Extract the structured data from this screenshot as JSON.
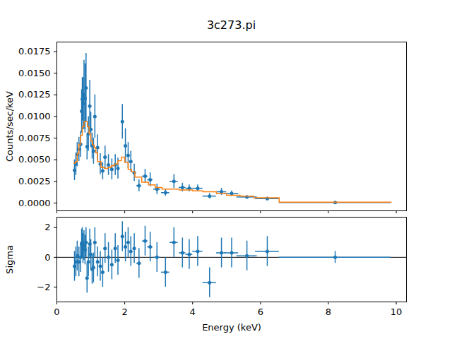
{
  "chart_data": [
    {
      "type": "scatter",
      "title": "3c273.pi",
      "y_label": "Counts/sec/keV",
      "xlim": [
        0,
        10.3
      ],
      "xticks": [
        0,
        2,
        4,
        6,
        8,
        10
      ],
      "tick_labels": "y",
      "ylim": [
        -0.0009,
        0.0186
      ],
      "yticks": [
        {
          "value": 0,
          "label": "0.0000"
        },
        {
          "value": 0.0025,
          "label": "0.0025"
        },
        {
          "value": 0.005,
          "label": "0.0050"
        },
        {
          "value": 0.0075,
          "label": "0.0075"
        },
        {
          "value": 0.01,
          "label": "0.0100"
        },
        {
          "value": 0.0125,
          "label": "0.0125"
        },
        {
          "value": 0.015,
          "label": "0.0150"
        },
        {
          "value": 0.0175,
          "label": "0.0175"
        }
      ],
      "series": [
        {
          "type": "scatter",
          "color": "#1f77b4",
          "marker": "circle",
          "x": [
            0.52,
            0.56,
            0.6,
            0.65,
            0.7,
            0.73,
            0.75,
            0.77,
            0.8,
            0.83,
            0.86,
            0.89,
            0.93,
            0.97,
            1.0,
            1.04,
            1.08,
            1.12,
            1.2,
            1.28,
            1.35,
            1.42,
            1.52,
            1.62,
            1.72,
            1.8,
            1.93,
            2.02,
            2.1,
            2.18,
            2.28,
            2.42,
            2.6,
            2.75,
            2.95,
            3.2,
            3.45,
            3.7,
            3.9,
            4.15,
            4.5,
            4.85,
            5.15,
            5.6,
            6.2,
            8.2
          ],
          "xerr": [
            0.02,
            0.02,
            0.02,
            0.02,
            0.02,
            0.02,
            0.02,
            0.02,
            0.02,
            0.02,
            0.02,
            0.02,
            0.02,
            0.02,
            0.02,
            0.02,
            0.02,
            0.02,
            0.02,
            0.02,
            0.02,
            0.04,
            0.04,
            0.04,
            0.04,
            0.04,
            0.04,
            0.04,
            0.04,
            0.04,
            0.04,
            0.07,
            0.08,
            0.08,
            0.1,
            0.12,
            0.12,
            0.1,
            0.1,
            0.15,
            0.2,
            0.15,
            0.2,
            0.3,
            0.35,
            1.65
          ],
          "values": [
            0.0038,
            0.0045,
            0.0056,
            0.0062,
            0.0068,
            0.0106,
            0.012,
            0.0115,
            0.0125,
            0.0121,
            0.0133,
            0.0065,
            0.008,
            0.0112,
            0.0085,
            0.0066,
            0.006,
            0.01,
            0.0064,
            0.0045,
            0.0037,
            0.0053,
            0.0044,
            0.0039,
            0.0044,
            0.004,
            0.0094,
            0.0066,
            0.0055,
            0.0048,
            0.0035,
            0.002,
            0.0031,
            0.0027,
            0.0016,
            0.0012,
            0.0025,
            0.0018,
            0.0017,
            0.0017,
            0.0008,
            0.0013,
            0.0011,
            0.0007,
            0.0005,
            5e-05
          ],
          "yerr": [
            0.0012,
            0.0013,
            0.0014,
            0.0014,
            0.0015,
            0.0025,
            0.0025,
            0.003,
            0.004,
            0.004,
            0.004,
            0.0015,
            0.002,
            0.003,
            0.002,
            0.0015,
            0.0015,
            0.0025,
            0.0015,
            0.0012,
            0.001,
            0.0013,
            0.0012,
            0.0012,
            0.0012,
            0.0012,
            0.002,
            0.002,
            0.0015,
            0.0012,
            0.001,
            0.0007,
            0.0008,
            0.0008,
            0.0006,
            0.0004,
            0.0008,
            0.0005,
            0.0004,
            0.0004,
            0.0003,
            0.0004,
            0.0003,
            0.0002,
            0.0002,
            0.0001
          ]
        },
        {
          "type": "step",
          "color": "#ff7f0e",
          "line_style": "solid",
          "bins": [
            0.5,
            0.55,
            0.6,
            0.65,
            0.7,
            0.75,
            0.8,
            0.85,
            0.9,
            0.95,
            1.0,
            1.05,
            1.1,
            1.15,
            1.2,
            1.3,
            1.4,
            1.5,
            1.6,
            1.7,
            1.8,
            1.9,
            2.0,
            2.1,
            2.2,
            2.3,
            2.5,
            2.7,
            2.9,
            3.1,
            3.4,
            3.6,
            3.8,
            4.0,
            4.3,
            4.7,
            5.0,
            5.4,
            5.8,
            6.55,
            9.85
          ],
          "values": [
            0.0046,
            0.0048,
            0.0057,
            0.0068,
            0.0078,
            0.0088,
            0.0094,
            0.0094,
            0.0088,
            0.008,
            0.0072,
            0.0067,
            0.0064,
            0.0058,
            0.0048,
            0.0041,
            0.004,
            0.0041,
            0.0043,
            0.0045,
            0.0049,
            0.0053,
            0.0047,
            0.0039,
            0.0036,
            0.003,
            0.0024,
            0.0021,
            0.0018,
            0.0016,
            0.0016,
            0.0015,
            0.0015,
            0.0014,
            0.0013,
            0.0011,
            0.0009,
            0.0008,
            0.0006,
            0.0001
          ]
        }
      ]
    },
    {
      "type": "scatter",
      "x_label": "Energy (keV)",
      "y_label": "Sigma",
      "xlim": [
        0,
        10.3
      ],
      "xticks": [
        0,
        2,
        4,
        6,
        8,
        10
      ],
      "ylim": [
        -3,
        2.7
      ],
      "yticks": [
        {
          "value": -2,
          "label": "−2"
        },
        0,
        2
      ],
      "hline": 0,
      "series": [
        {
          "type": "scatter",
          "color": "#1f77b4",
          "marker": "circle",
          "x": [
            0.52,
            0.56,
            0.6,
            0.65,
            0.7,
            0.73,
            0.75,
            0.77,
            0.8,
            0.83,
            0.86,
            0.89,
            0.93,
            0.97,
            1.0,
            1.04,
            1.08,
            1.12,
            1.2,
            1.28,
            1.35,
            1.42,
            1.52,
            1.62,
            1.72,
            1.8,
            1.93,
            2.02,
            2.1,
            2.18,
            2.28,
            2.42,
            2.6,
            2.75,
            2.95,
            3.2,
            3.45,
            3.7,
            3.9,
            4.15,
            4.5,
            4.85,
            5.15,
            5.6,
            6.2,
            8.2
          ],
          "xerr": [
            0.02,
            0.02,
            0.02,
            0.02,
            0.02,
            0.02,
            0.02,
            0.02,
            0.02,
            0.02,
            0.02,
            0.02,
            0.02,
            0.02,
            0.02,
            0.02,
            0.02,
            0.02,
            0.02,
            0.02,
            0.02,
            0.04,
            0.04,
            0.04,
            0.04,
            0.04,
            0.04,
            0.04,
            0.04,
            0.04,
            0.04,
            0.07,
            0.08,
            0.08,
            0.1,
            0.12,
            0.12,
            0.1,
            0.1,
            0.15,
            0.2,
            0.15,
            0.2,
            0.3,
            0.35,
            1.65
          ],
          "values": [
            -0.6,
            -0.3,
            0.1,
            -0.3,
            0.0,
            0.9,
            1.0,
            0.6,
            0.8,
            0.5,
            1.0,
            -1.4,
            -0.3,
            0.9,
            0.2,
            -0.8,
            -0.7,
            1.0,
            -0.3,
            -0.6,
            -1.0,
            0.6,
            0.0,
            -0.5,
            0.6,
            -0.2,
            1.4,
            0.7,
            1.0,
            0.4,
            0.6,
            -0.4,
            1.1,
            0.7,
            0.0,
            -1.0,
            1.0,
            0.3,
            0.2,
            0.4,
            -1.7,
            0.3,
            0.3,
            0.1,
            0.4,
            0.0
          ],
          "yerr": [
            1,
            1,
            1,
            1,
            1,
            1,
            1,
            1,
            1,
            1,
            1,
            1,
            1,
            1,
            1,
            1,
            1,
            1,
            1,
            1,
            1,
            1,
            1,
            1,
            1,
            1,
            1,
            1,
            1,
            1,
            1,
            1,
            1,
            1,
            1,
            1,
            1,
            1,
            1,
            1,
            1,
            1,
            1,
            1,
            1,
            0.4
          ]
        }
      ]
    }
  ]
}
